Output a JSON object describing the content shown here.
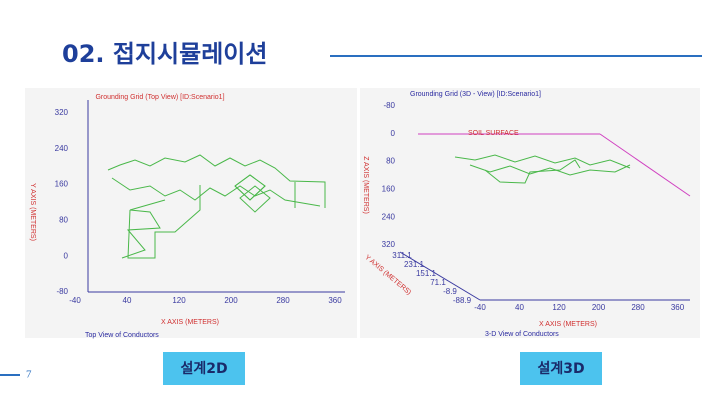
{
  "header": {
    "title": "02. 접지시뮬레이션"
  },
  "page_number": "7",
  "left_panel": {
    "title": "Grounding Grid (Top View) [ID:Scenario1]",
    "yticks": [
      "320",
      "240",
      "160",
      "80",
      "0",
      "-80"
    ],
    "xticks": [
      "-40",
      "40",
      "120",
      "200",
      "280",
      "360"
    ],
    "x_label": "X AXIS  (METERS)",
    "y_label": "Y AXIS (METERS)",
    "caption": "Top View of Conductors",
    "button": "설계2D"
  },
  "right_panel": {
    "title": "Grounding Grid (3D - View) [ID:Scenario1]",
    "zticks": [
      "-80",
      "0",
      "80",
      "160",
      "240",
      "320"
    ],
    "yticks": [
      "311.1",
      "231.1",
      "151.1",
      "71.1",
      "-8.9",
      "-88.9"
    ],
    "xticks": [
      "-40",
      "40",
      "120",
      "200",
      "280",
      "360"
    ],
    "surface_label": "SOIL SURFACE",
    "z_label": "Z AXIS (METERS)",
    "y_label": "Y AXIS (METERS)",
    "x_label": "X AXIS  (METERS)",
    "caption": "3-D View of Conductors",
    "button": "설계3D"
  }
}
